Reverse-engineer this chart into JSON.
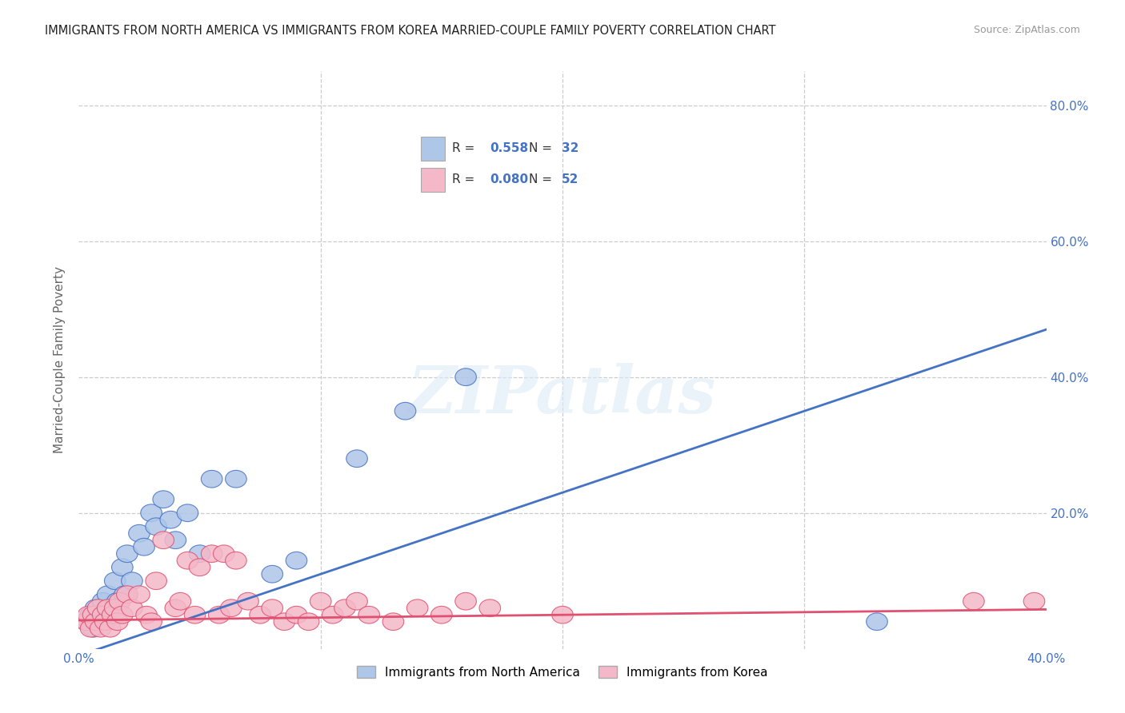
{
  "title": "IMMIGRANTS FROM NORTH AMERICA VS IMMIGRANTS FROM KOREA MARRIED-COUPLE FAMILY POVERTY CORRELATION CHART",
  "source": "Source: ZipAtlas.com",
  "ylabel": "Married-Couple Family Poverty",
  "xlim": [
    0.0,
    0.4
  ],
  "ylim": [
    0.0,
    0.85
  ],
  "blue_R": 0.558,
  "blue_N": 32,
  "pink_R": 0.08,
  "pink_N": 52,
  "blue_color": "#aec6e8",
  "pink_color": "#f4b8c8",
  "blue_line_color": "#4472c4",
  "pink_line_color": "#e05070",
  "watermark_text": "ZIPatlas",
  "blue_line_x0": 0.0,
  "blue_line_y0": -0.01,
  "blue_line_x1": 0.4,
  "blue_line_y1": 0.47,
  "pink_line_x0": 0.0,
  "pink_line_y0": 0.042,
  "pink_line_x1": 0.4,
  "pink_line_y1": 0.058,
  "blue_scatter_x": [
    0.003,
    0.005,
    0.006,
    0.007,
    0.008,
    0.01,
    0.011,
    0.012,
    0.013,
    0.015,
    0.016,
    0.018,
    0.019,
    0.02,
    0.022,
    0.025,
    0.027,
    0.03,
    0.032,
    0.035,
    0.038,
    0.04,
    0.045,
    0.05,
    0.055,
    0.065,
    0.08,
    0.09,
    0.115,
    0.135,
    0.16,
    0.33
  ],
  "blue_scatter_y": [
    0.04,
    0.05,
    0.03,
    0.06,
    0.05,
    0.07,
    0.04,
    0.08,
    0.06,
    0.1,
    0.07,
    0.12,
    0.08,
    0.14,
    0.1,
    0.17,
    0.15,
    0.2,
    0.18,
    0.22,
    0.19,
    0.16,
    0.2,
    0.14,
    0.25,
    0.25,
    0.11,
    0.13,
    0.28,
    0.35,
    0.4,
    0.04
  ],
  "pink_scatter_x": [
    0.003,
    0.004,
    0.005,
    0.006,
    0.007,
    0.008,
    0.009,
    0.01,
    0.011,
    0.012,
    0.013,
    0.014,
    0.015,
    0.016,
    0.017,
    0.018,
    0.02,
    0.022,
    0.025,
    0.028,
    0.03,
    0.032,
    0.035,
    0.04,
    0.042,
    0.045,
    0.048,
    0.05,
    0.055,
    0.058,
    0.06,
    0.063,
    0.065,
    0.07,
    0.075,
    0.08,
    0.085,
    0.09,
    0.095,
    0.1,
    0.105,
    0.11,
    0.115,
    0.12,
    0.13,
    0.14,
    0.15,
    0.16,
    0.17,
    0.2,
    0.37,
    0.395
  ],
  "pink_scatter_y": [
    0.04,
    0.05,
    0.03,
    0.05,
    0.04,
    0.06,
    0.03,
    0.05,
    0.04,
    0.06,
    0.03,
    0.05,
    0.06,
    0.04,
    0.07,
    0.05,
    0.08,
    0.06,
    0.08,
    0.05,
    0.04,
    0.1,
    0.16,
    0.06,
    0.07,
    0.13,
    0.05,
    0.12,
    0.14,
    0.05,
    0.14,
    0.06,
    0.13,
    0.07,
    0.05,
    0.06,
    0.04,
    0.05,
    0.04,
    0.07,
    0.05,
    0.06,
    0.07,
    0.05,
    0.04,
    0.06,
    0.05,
    0.07,
    0.06,
    0.05,
    0.07,
    0.07
  ],
  "legend_R_color": "#333333",
  "legend_val_color": "#4472c4",
  "title_fontsize": 10.5,
  "source_fontsize": 9,
  "axis_tick_fontsize": 11,
  "ylabel_fontsize": 11
}
